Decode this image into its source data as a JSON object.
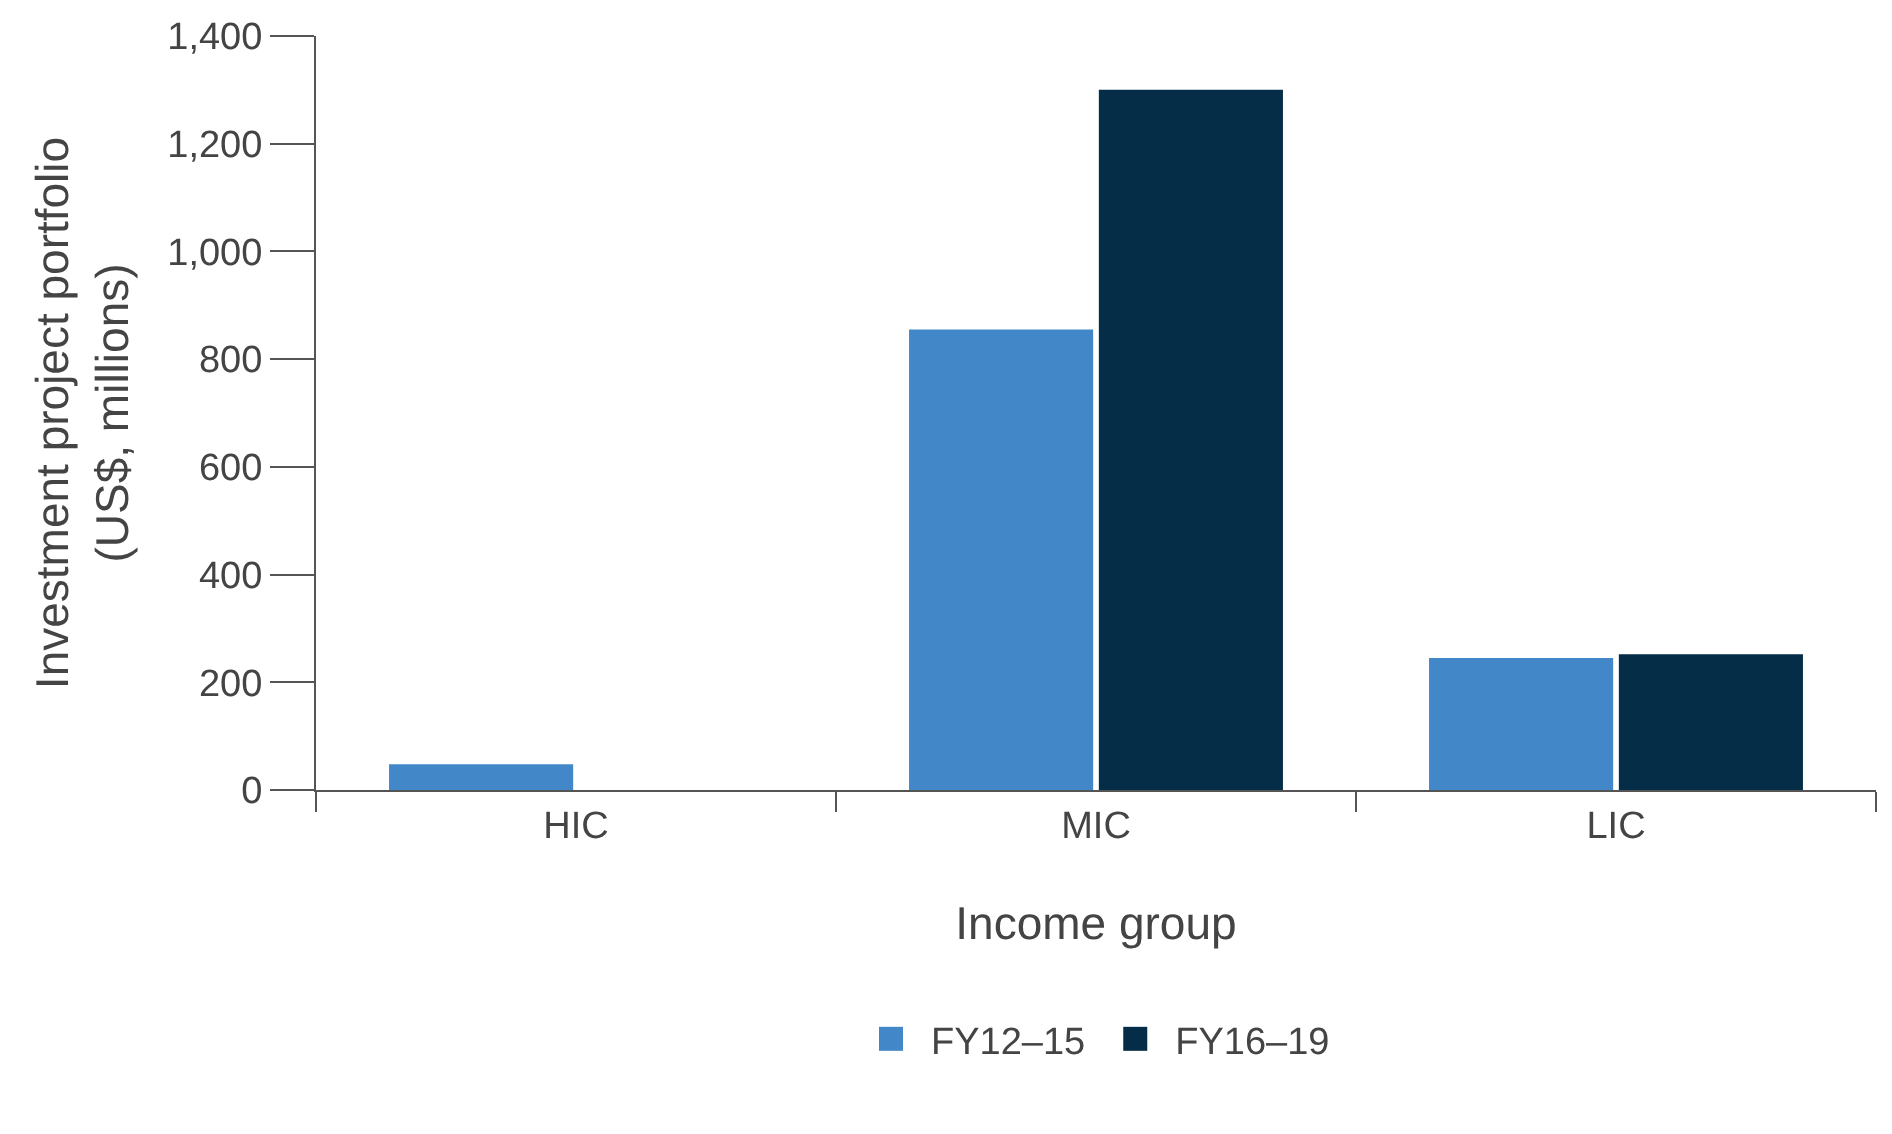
{
  "chart_data": {
    "type": "bar",
    "xlabel": "Income group",
    "ylabel": "Investment project portfolio\n(US$, millions)",
    "categories": [
      "HIC",
      "MIC",
      "LIC"
    ],
    "series": [
      {
        "name": "FY12–15",
        "color": "#4287c8",
        "values": [
          48,
          855,
          245
        ]
      },
      {
        "name": "FY16–19",
        "color": "#052d48",
        "values": [
          0,
          1300,
          252
        ]
      }
    ],
    "ylim": [
      0,
      1400
    ],
    "yticks": [
      0,
      {
        "value": 200,
        "label": "200"
      },
      {
        "value": 400,
        "label": "400"
      },
      {
        "value": 600,
        "label": "600"
      },
      {
        "value": 800,
        "label": "800"
      },
      {
        "value": 1000,
        "label": "1,000"
      },
      {
        "value": 1200,
        "label": "1,200"
      },
      {
        "value": 1400,
        "label": "1,400"
      }
    ],
    "grid": false,
    "legend": "bottom"
  }
}
